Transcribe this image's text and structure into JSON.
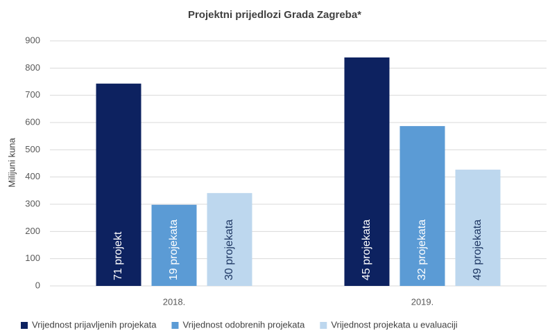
{
  "chart_data": {
    "type": "bar",
    "title": "Projektni prijedlozi Grada Zagreba*",
    "y_label": "Milijuni kuna",
    "categories": [
      "2018.",
      "2019."
    ],
    "series": [
      {
        "name": "Vrijednost prijavljenih projekata",
        "color": "#0d2260",
        "values": [
          743,
          839
        ],
        "bar_labels": [
          "71 projekt",
          "45 projekata"
        ],
        "label_color": "#ffffff"
      },
      {
        "name": "Vrijednost odobrenih projekata",
        "color": "#5b9bd5",
        "values": [
          298,
          587
        ],
        "bar_labels": [
          "19 projekata",
          "32 projekata"
        ],
        "label_color": "#ffffff"
      },
      {
        "name": "Vrijednost projekata u evaluaciji",
        "color": "#bdd7ee",
        "values": [
          341,
          427
        ],
        "bar_labels": [
          "30 projekata",
          "49 projekata"
        ],
        "label_color": "#1f3864"
      }
    ],
    "ylim": [
      0,
      900
    ],
    "yticks": [
      0,
      100,
      200,
      300,
      400,
      500,
      600,
      700,
      800,
      900
    ],
    "grid": true,
    "legend": "bottom"
  }
}
